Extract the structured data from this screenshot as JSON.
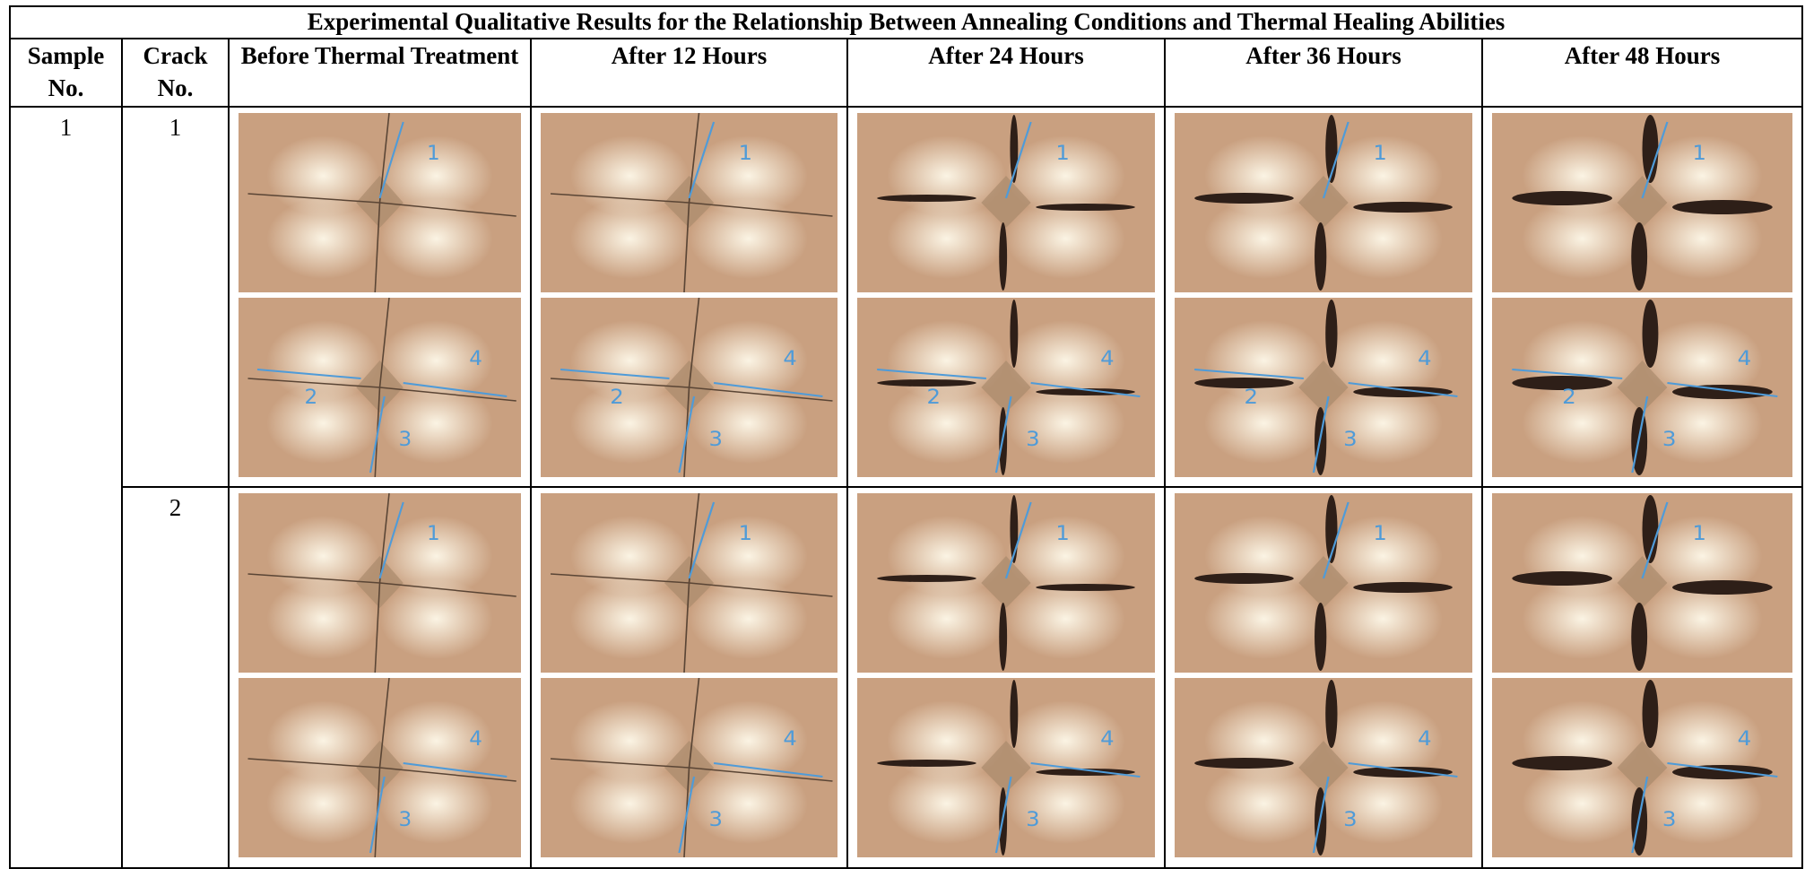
{
  "table": {
    "title": "Experimental Qualitative Results for the Relationship Between Annealing Conditions and Thermal Healing Abilities",
    "headers": [
      "Sample No.",
      "Crack No.",
      "Before Thermal Treatment",
      "After 12 Hours",
      "After 24 Hours",
      "After 36 Hours",
      "After 48 Hours"
    ],
    "rows": [
      {
        "sample": "1",
        "crack": "1",
        "cells": [
          {
            "top": [
              "1"
            ],
            "bottom": [
              "2",
              "3",
              "4"
            ]
          },
          {
            "top": [
              "1"
            ],
            "bottom": [
              "2",
              "3",
              "4"
            ]
          },
          {
            "top": [
              "1"
            ],
            "bottom": [
              "2",
              "3",
              "4"
            ]
          },
          {
            "top": [
              "1"
            ],
            "bottom": [
              "2",
              "3",
              "4"
            ]
          },
          {
            "top": [
              "1"
            ],
            "bottom": [
              "2",
              "3",
              "4"
            ]
          }
        ]
      },
      {
        "sample": null,
        "crack": "2",
        "cells": [
          {
            "top": [
              "1"
            ],
            "bottom": [
              "3",
              "4"
            ]
          },
          {
            "top": [
              "1"
            ],
            "bottom": [
              "3",
              "4"
            ]
          },
          {
            "top": [
              "1"
            ],
            "bottom": [
              "3",
              "4"
            ]
          },
          {
            "top": [
              "1"
            ],
            "bottom": [
              "3",
              "4"
            ]
          },
          {
            "top": [
              "1"
            ],
            "bottom": [
              "3",
              "4"
            ]
          }
        ]
      }
    ]
  }
}
